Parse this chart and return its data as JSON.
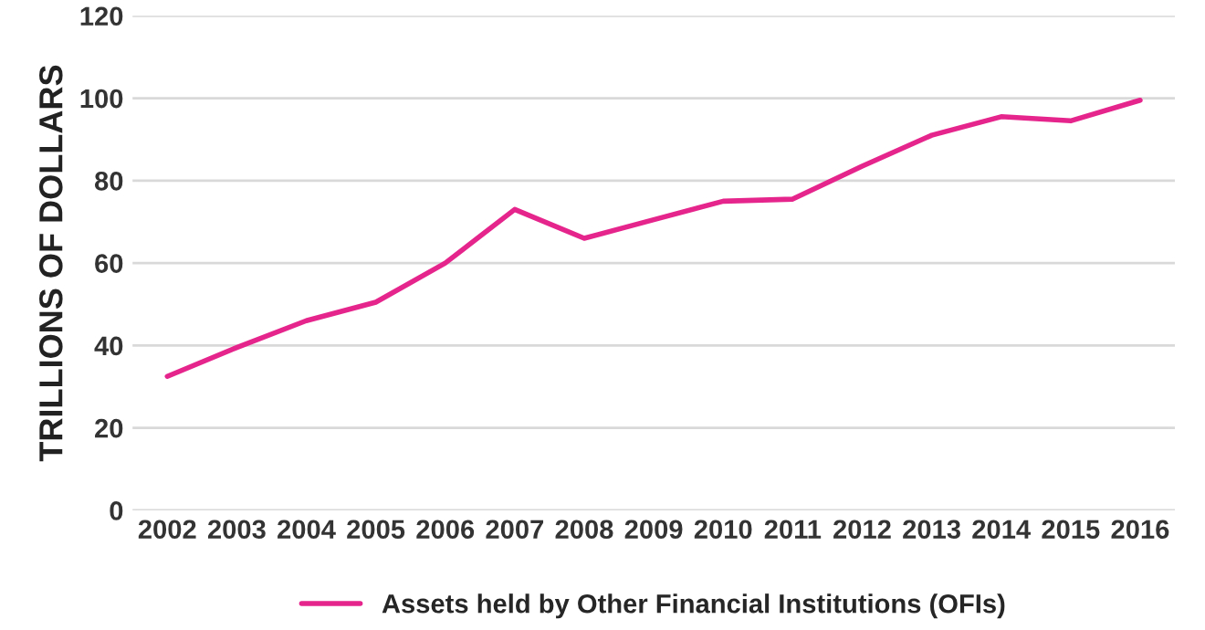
{
  "chart_data": {
    "type": "line",
    "ylabel": "TRILLIONS OF DOLLARS",
    "categories": [
      "2002",
      "2003",
      "2004",
      "2005",
      "2006",
      "2007",
      "2008",
      "2009",
      "2010",
      "2011",
      "2012",
      "2013",
      "2014",
      "2015",
      "2016"
    ],
    "series": [
      {
        "name": "Assets held by Other Financial Institutions (OFIs)",
        "color": "#e6258c",
        "values": [
          32.5,
          39.5,
          46,
          50.5,
          60,
          73,
          66,
          70.5,
          75,
          75.5,
          83.5,
          91,
          95.5,
          94.5,
          99.5
        ]
      }
    ],
    "ylim": [
      0,
      120
    ],
    "yticks": [
      0,
      20,
      40,
      60,
      80,
      100,
      120
    ],
    "grid": "y",
    "legend": "bottom",
    "marker": "none",
    "line_style": "solid"
  }
}
